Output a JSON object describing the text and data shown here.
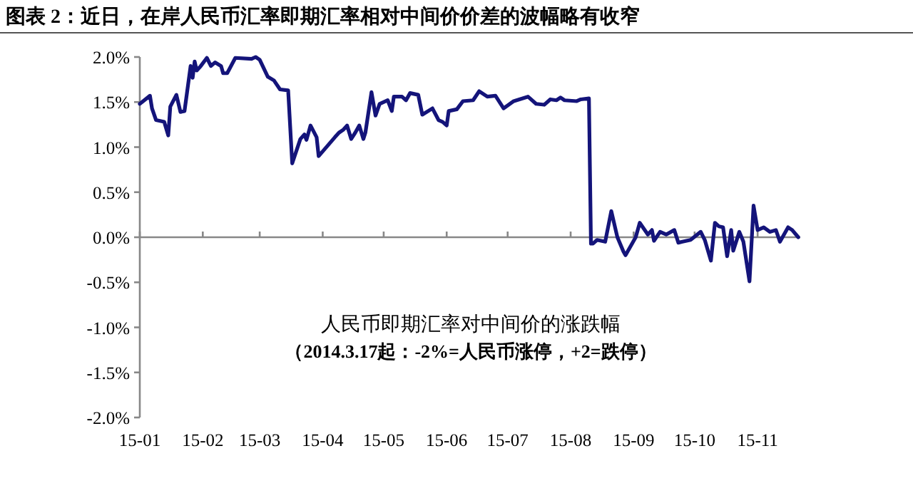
{
  "chart_data": {
    "type": "line",
    "title": "图表 2：近日，在岸人民币汇率即期汇率相对中间价价差的波幅略有收窄",
    "annotations": [
      "人民币即期汇率对中间价的涨跌幅",
      "（2014.3.17起：-2%=人民币涨停，+2=跌停）"
    ],
    "x": [
      "--01-01",
      "--01-06",
      "--01-07",
      "--01-09",
      "--01-13",
      "--01-15",
      "--01-16",
      "--01-19",
      "--01-21",
      "--01-23",
      "--01-26",
      "--01-27",
      "--01-28",
      "--01-29",
      "--01-31",
      "--02-03",
      "--02-05",
      "--02-07",
      "--02-10",
      "--02-11",
      "--02-13",
      "--02-17",
      "--02-25",
      "--02-27",
      "--03-01",
      "--03-05",
      "--03-08",
      "--03-11",
      "--03-15",
      "--03-17",
      "--03-21",
      "--03-23",
      "--03-24",
      "--03-26",
      "--03-29",
      "--03-30",
      "--04-07",
      "--04-09",
      "--04-11",
      "--04-13",
      "--04-15",
      "--04-17",
      "--04-19",
      "--04-21",
      "--04-22",
      "--04-25",
      "--04-27",
      "--04-29",
      "--05-03",
      "--05-05",
      "--05-06",
      "--05-10",
      "--05-12",
      "--05-14",
      "--05-18",
      "--05-20",
      "--05-25",
      "--05-28",
      "--05-30",
      "--06-01",
      "--06-02",
      "--06-06",
      "--06-09",
      "--06-14",
      "--06-17",
      "--06-21",
      "--06-25",
      "--06-29",
      "--07-04",
      "--07-11",
      "--07-15",
      "--07-19",
      "--07-22",
      "--07-25",
      "--07-27",
      "--07-29",
      "--08-04",
      "--08-06",
      "--08-10",
      "--08-11",
      "--08-12",
      "--08-14",
      "--08-18",
      "--08-21",
      "--08-24",
      "--08-27",
      "--08-28",
      "--09-02",
      "--09-04",
      "--09-08",
      "--09-10",
      "--09-11",
      "--09-14",
      "--09-17",
      "--09-21",
      "--09-23",
      "--09-25",
      "--09-29",
      "--10-04",
      "--10-06",
      "--10-09",
      "--10-11",
      "--10-13",
      "--10-15",
      "--10-17",
      "--10-19",
      "--10-20",
      "--10-23",
      "--10-25",
      "--10-28",
      "--10-30",
      "--11-01",
      "--11-04",
      "--11-07",
      "--11-10",
      "--11-12",
      "--11-16",
      "--11-18",
      "--11-21"
    ],
    "series": [
      {
        "color": "#14147a",
        "values": [
          1.48,
          1.57,
          1.43,
          1.3,
          1.28,
          1.13,
          1.45,
          1.58,
          1.39,
          1.4,
          1.9,
          1.77,
          1.95,
          1.85,
          1.9,
          1.99,
          1.9,
          1.94,
          1.9,
          1.82,
          1.82,
          1.99,
          1.98,
          2.0,
          1.97,
          1.78,
          1.74,
          1.64,
          1.63,
          0.82,
          1.09,
          1.14,
          1.08,
          1.24,
          1.11,
          0.9,
          1.11,
          1.16,
          1.19,
          1.24,
          1.09,
          1.16,
          1.24,
          1.09,
          1.16,
          1.61,
          1.35,
          1.48,
          1.52,
          1.4,
          1.56,
          1.56,
          1.52,
          1.6,
          1.58,
          1.36,
          1.43,
          1.3,
          1.28,
          1.24,
          1.4,
          1.42,
          1.51,
          1.52,
          1.62,
          1.56,
          1.57,
          1.43,
          1.51,
          1.56,
          1.48,
          1.47,
          1.53,
          1.52,
          1.55,
          1.52,
          1.51,
          1.53,
          1.54,
          -0.07,
          -0.07,
          -0.03,
          -0.05,
          0.29,
          0.0,
          -0.16,
          -0.2,
          0.0,
          0.16,
          0.03,
          0.08,
          -0.04,
          0.06,
          0.03,
          0.08,
          -0.06,
          -0.05,
          -0.03,
          0.06,
          -0.03,
          -0.26,
          0.16,
          0.12,
          0.11,
          -0.21,
          0.08,
          -0.15,
          0.06,
          -0.05,
          -0.49,
          0.35,
          0.08,
          0.11,
          0.06,
          0.08,
          -0.05,
          0.11,
          0.08,
          0.0
        ]
      }
    ],
    "xlim": [
      "--01-01",
      "--11-22"
    ],
    "xticks": [
      {
        "value": "--01-01",
        "label": "15-01"
      },
      {
        "value": "--02-01",
        "label": "15-02"
      },
      {
        "value": "--03-01",
        "label": "15-03"
      },
      {
        "value": "--04-01",
        "label": "15-04"
      },
      {
        "value": "--05-01",
        "label": "15-05"
      },
      {
        "value": "--06-01",
        "label": "15-06"
      },
      {
        "value": "--07-01",
        "label": "15-07"
      },
      {
        "value": "--08-01",
        "label": "15-08"
      },
      {
        "value": "--09-01",
        "label": "15-09"
      },
      {
        "value": "--10-01",
        "label": "15-10"
      },
      {
        "value": "--11-01",
        "label": "15-11"
      }
    ],
    "ylim": [
      -2,
      2
    ],
    "yticks": [
      {
        "value": -2,
        "label": "-2.0%"
      },
      {
        "value": -1.5,
        "label": "-1.5%"
      },
      {
        "value": -1,
        "label": "-1.0%"
      },
      {
        "value": -0.5,
        "label": "-0.5%"
      },
      {
        "value": 0,
        "label": "0.0%"
      },
      {
        "value": 0.5,
        "label": "0.5%"
      },
      {
        "value": 1,
        "label": "1.0%"
      },
      {
        "value": 1.5,
        "label": "1.5%"
      },
      {
        "value": 2,
        "label": "2.0%"
      }
    ]
  }
}
